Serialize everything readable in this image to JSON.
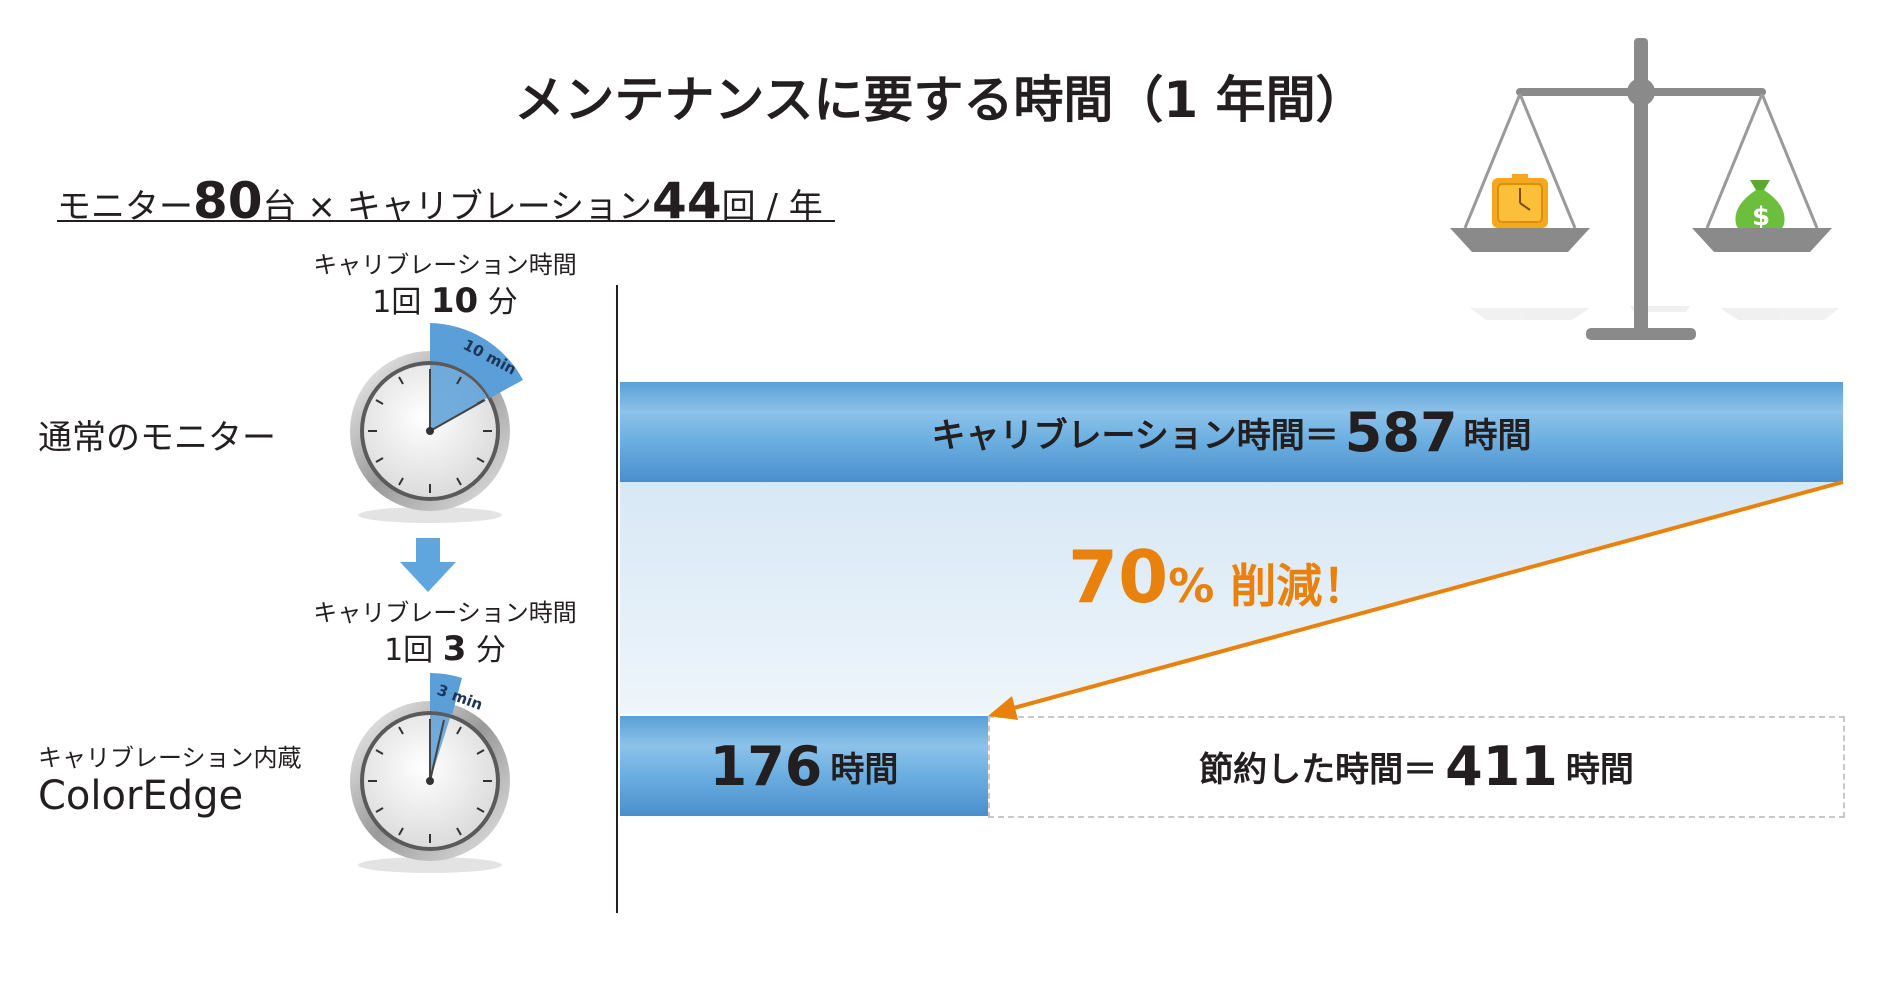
{
  "title": "メンテナンスに要する時間（1 年間）",
  "formula": {
    "monitor_label": "モニター",
    "monitor_count": "80",
    "monitor_unit": "台",
    "times": "×",
    "calibration_label": "キャリブレーション",
    "calibration_count": "44",
    "calibration_unit": "回 / 年"
  },
  "normal": {
    "header_label": "キャリブレーション時間",
    "per_time_prefix": "1回",
    "per_time_value": "10",
    "per_time_unit": "分",
    "dial_label": "10 min",
    "row_label": "通常のモニター"
  },
  "coloredge": {
    "header_label": "キャリブレーション時間",
    "per_time_prefix": "1回",
    "per_time_value": "3",
    "per_time_unit": "分",
    "dial_label": "3 min",
    "row_label_small": "キャリブレーション内蔵",
    "row_label_big": "ColorEdge"
  },
  "bars": {
    "normal": {
      "prefix": "キャリブレーション時間＝",
      "value": "587",
      "unit": "時間",
      "hours": 587
    },
    "coloredge": {
      "value": "176",
      "unit": "時間",
      "hours": 176
    },
    "saved": {
      "prefix": "節約した時間＝",
      "value": "411",
      "unit": "時間",
      "hours": 411
    }
  },
  "reduction": {
    "value": "70",
    "pct": "%",
    "label": " 削減！"
  },
  "colors": {
    "bar_blue": "#5aa0d6",
    "shade_blue": "#dbeaf6",
    "accent_orange": "#e8820c",
    "scale_gray": "#8a8a8a",
    "clock_gold": "#f4a81d",
    "money_green": "#6cbf3c"
  },
  "icons": [
    "stopwatch-icon",
    "down-arrow-icon",
    "balance-scale-icon",
    "alarm-clock-icon",
    "money-bag-icon"
  ]
}
